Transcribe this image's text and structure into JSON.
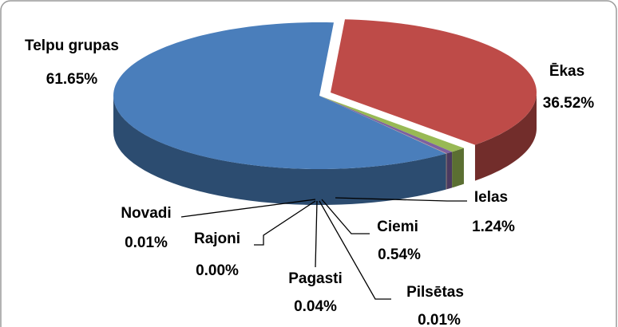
{
  "chart_data": {
    "type": "pie",
    "categories": [
      "Ēkas",
      "Ielas",
      "Ciemi",
      "Pilsētas",
      "Pagasti",
      "Rajoni",
      "Novadi",
      "Telpu grupas"
    ],
    "values": [
      36.52,
      1.24,
      0.54,
      0.01,
      0.04,
      0.0,
      0.01,
      61.65
    ],
    "value_labels": [
      "36.52%",
      "1.24%",
      "0.54%",
      "0.01%",
      "0.04%",
      "0.00%",
      "0.01%",
      "61.65%"
    ],
    "colors": [
      "#be4b48",
      "#98b954",
      "#7d60a0",
      "#4bacc6",
      "#f79646",
      "#2c4d75",
      "#7d60a0",
      "#4a7ebb"
    ]
  }
}
